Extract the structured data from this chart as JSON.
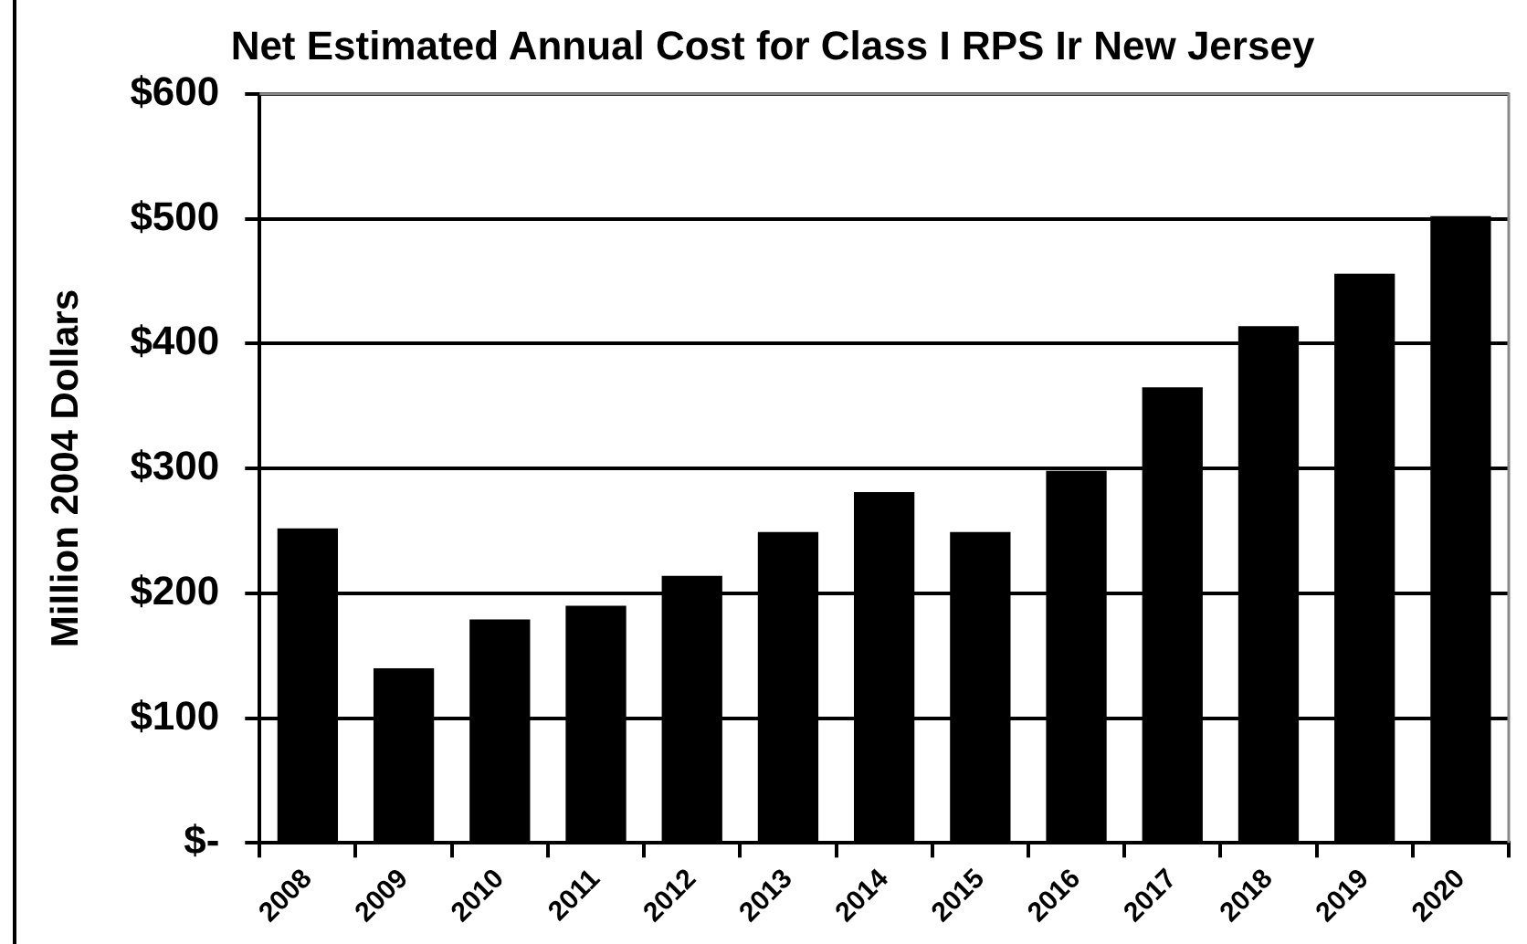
{
  "chart_data": {
    "type": "bar",
    "title": "Net Estimated Annual Cost for Class I RPS Ir New Jersey",
    "ylabel": "Million 2004 Dollars",
    "categories": [
      "2008",
      "2009",
      "2010",
      "2011",
      "2012",
      "2013",
      "2014",
      "2015",
      "2016",
      "2017",
      "2018",
      "2019",
      "2020"
    ],
    "values": [
      252,
      140,
      179,
      190,
      214,
      249,
      281,
      249,
      298,
      365,
      414,
      456,
      502
    ],
    "color": "#000000",
    "ylim": [
      0,
      600
    ],
    "yticks": [
      {
        "value": 0,
        "label": "$-"
      },
      {
        "value": 100,
        "label": "$100"
      },
      {
        "value": 200,
        "label": "$200"
      },
      {
        "value": 300,
        "label": "$300"
      },
      {
        "value": 400,
        "label": "$400"
      },
      {
        "value": 500,
        "label": "$500"
      },
      {
        "value": 600,
        "label": "$600"
      }
    ],
    "grid": "y",
    "legend": false
  }
}
